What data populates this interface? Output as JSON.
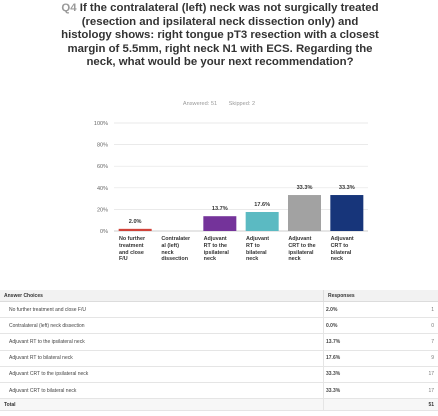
{
  "question": {
    "number": "Q4",
    "text": "If the contralateral (left) neck was not surgically treated (resection and ipsilateral neck dissection only) and histology shows: right tongue pT3 resection with a closest margin of 5.5mm, right neck N1 with ECS. Regarding the neck, what would be your next recommendation?"
  },
  "meta": {
    "answered": "Answered: 51",
    "skipped": "Skipped: 2"
  },
  "chart_data": {
    "type": "bar",
    "categories": [
      "No further treatment and close F/U",
      "Contralateral (left) neck dissection",
      "Adjuvant RT to the ipsilateral neck",
      "Adjuvant RT to bilateral neck",
      "Adjuvant CRT to the ipsilateral neck",
      "Adjuvant CRT to bilateral neck"
    ],
    "category_lines": [
      [
        "No further",
        "treatment",
        "and close",
        "F/U"
      ],
      [
        "Contralater",
        "al (left)",
        "neck",
        "dissection"
      ],
      [
        "Adjuvant",
        "RT to the",
        "ipsilateral",
        "neck"
      ],
      [
        "Adjuvant",
        "RT to",
        "bilateral",
        "neck"
      ],
      [
        "Adjuvant",
        "CRT to the",
        "ipsilateral",
        "neck"
      ],
      [
        "Adjuvant",
        "CRT to",
        "bilateral",
        "neck"
      ]
    ],
    "values": [
      2.0,
      0.0,
      13.7,
      17.6,
      33.3,
      33.3
    ],
    "value_labels": [
      "2.0%",
      "",
      "13.7%",
      "17.6%",
      "33.3%",
      "33.3%"
    ],
    "colors": [
      "#d0433a",
      "#e8912c",
      "#74339a",
      "#5bbac2",
      "#a2a2a2",
      "#17357a"
    ],
    "ylim": [
      0,
      100
    ],
    "yticks": [
      "0%",
      "20%",
      "40%",
      "60%",
      "80%",
      "100%"
    ],
    "grid": true,
    "title": "",
    "xlabel": "",
    "ylabel": ""
  },
  "table": {
    "headers": {
      "choice": "Answer Choices",
      "responses": "Responses"
    },
    "rows": [
      {
        "choice": "No further treatment and close F/U",
        "pct": "2.0%",
        "count": "1"
      },
      {
        "choice": "Contralateral (left) neck dissection",
        "pct": "0.0%",
        "count": "0"
      },
      {
        "choice": "Adjuvant RT to the ipsilateral neck",
        "pct": "13.7%",
        "count": "7"
      },
      {
        "choice": "Adjuvant RT to bilateral neck",
        "pct": "17.6%",
        "count": "9"
      },
      {
        "choice": "Adjuvant CRT to the ipsilateral neck",
        "pct": "33.3%",
        "count": "17"
      },
      {
        "choice": "Adjuvant CRT to bilateral neck",
        "pct": "33.3%",
        "count": "17"
      }
    ],
    "total": {
      "label": "Total",
      "count": "51"
    }
  }
}
